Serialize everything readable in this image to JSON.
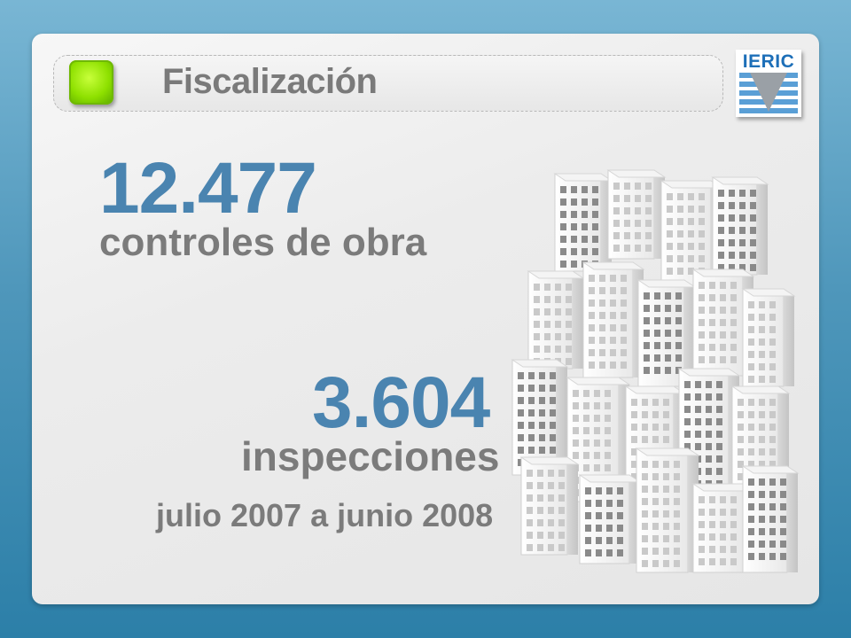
{
  "header": {
    "title": "Fiscalización",
    "logo_text": "IERIC"
  },
  "stats": [
    {
      "value": "12.477",
      "label": "controles de obra"
    },
    {
      "value": "3.604",
      "label": "inspecciones"
    }
  ],
  "period": "julio 2007 a junio 2008",
  "colors": {
    "accent": "#4a84b0",
    "label_gray": "#7b7b7b",
    "bullet_green": "#8ee000",
    "background_blue": "#4f97bb",
    "logo_blue": "#1d6fb8"
  },
  "icons": [
    "green-square-bullet-icon",
    "ieric-logo",
    "buildings-illustration"
  ]
}
